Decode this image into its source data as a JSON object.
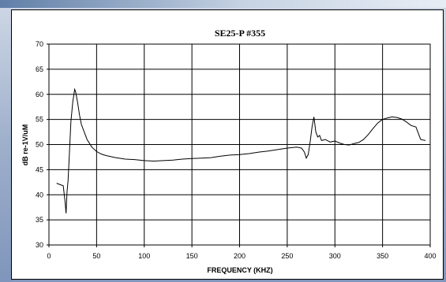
{
  "chart_data": {
    "type": "line",
    "title": "SE25-P #355",
    "xlabel": "FREQUENCY  (KHZ)",
    "ylabel": "dB re-1V/uM",
    "xlim": [
      0,
      400
    ],
    "ylim": [
      30,
      70
    ],
    "xticks": [
      0,
      50,
      100,
      150,
      200,
      250,
      300,
      350,
      400
    ],
    "yticks": [
      30,
      35,
      40,
      45,
      50,
      55,
      60,
      65,
      70
    ],
    "grid": true,
    "series": [
      {
        "color": "#000000",
        "x": [
          8,
          12,
          15,
          17,
          18,
          19,
          20,
          21,
          22,
          23,
          25,
          27,
          28,
          30,
          32,
          34,
          37,
          40,
          45,
          50,
          55,
          60,
          70,
          80,
          90,
          100,
          110,
          120,
          130,
          140,
          150,
          160,
          170,
          180,
          190,
          200,
          210,
          220,
          230,
          240,
          250,
          260,
          265,
          268,
          270,
          272,
          274,
          276,
          278,
          280,
          282,
          284,
          286,
          290,
          295,
          300,
          305,
          310,
          315,
          320,
          325,
          330,
          335,
          340,
          345,
          350,
          355,
          360,
          365,
          370,
          375,
          380,
          385,
          390,
          395
        ],
        "y": [
          42.3,
          42.0,
          41.8,
          38.5,
          36.3,
          40.5,
          42.8,
          46.5,
          50.5,
          54.5,
          58.5,
          61.0,
          60.5,
          58.5,
          56.0,
          54.0,
          52.5,
          51.0,
          49.5,
          48.6,
          48.1,
          47.8,
          47.4,
          47.1,
          47.0,
          46.8,
          46.7,
          46.8,
          46.9,
          47.1,
          47.2,
          47.3,
          47.4,
          47.7,
          47.9,
          48.0,
          48.2,
          48.5,
          48.7,
          49.0,
          49.3,
          49.5,
          49.3,
          48.5,
          47.3,
          48.0,
          50.5,
          53.5,
          55.5,
          52.5,
          51.5,
          51.8,
          50.8,
          51.0,
          50.5,
          50.7,
          50.3,
          50.0,
          49.9,
          50.2,
          50.4,
          51.0,
          52.0,
          53.2,
          54.3,
          55.0,
          55.3,
          55.5,
          55.4,
          55.1,
          54.5,
          53.8,
          53.5,
          51.0,
          50.8
        ]
      }
    ]
  }
}
